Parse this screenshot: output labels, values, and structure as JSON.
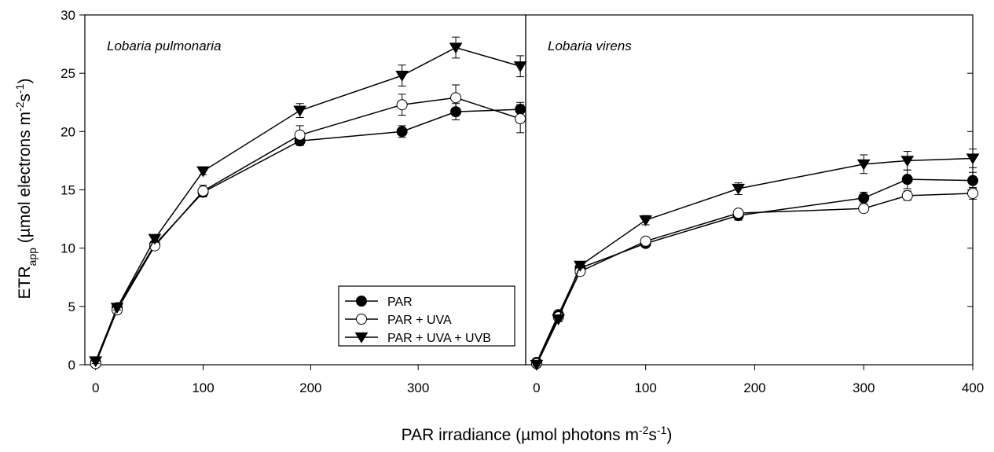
{
  "xlabel": [
    {
      "text": "PAR irradiance (µmol photons m"
    },
    {
      "text": "-2",
      "shift": "super"
    },
    {
      "text": "s"
    },
    {
      "text": "-1",
      "shift": "super"
    },
    {
      "text": ")"
    }
  ],
  "ylabel": [
    {
      "text": "ETR"
    },
    {
      "text": "app",
      "shift": "sub"
    },
    {
      "text": " (µmol electrons m"
    },
    {
      "text": "-2",
      "shift": "super"
    },
    {
      "text": "s"
    },
    {
      "text": "-1",
      "shift": "super"
    },
    {
      "text": ")"
    }
  ],
  "chart_data": [
    {
      "type": "line",
      "annotation": "Lobaria pulmonaria",
      "x": [
        0,
        20,
        55,
        100,
        190,
        285,
        335,
        395
      ],
      "xlim": [
        -10,
        400
      ],
      "xticks": [
        0,
        100,
        200,
        300
      ],
      "ylim": [
        0,
        30
      ],
      "yticks": [
        0,
        5,
        10,
        15,
        20,
        25,
        30
      ],
      "ytick_labels": true,
      "legend": "lower right",
      "series": [
        {
          "name": "PAR",
          "color": "#000000",
          "marker": "circle",
          "fill": "#000000",
          "values": [
            0.2,
            4.9,
            10.3,
            14.8,
            19.2,
            20.0,
            21.7,
            21.9
          ],
          "errors": [
            0.2,
            0.2,
            0.3,
            0.4,
            0.4,
            0.5,
            0.7,
            0.6
          ]
        },
        {
          "name": "PAR + UVA",
          "color": "#000000",
          "marker": "circle",
          "fill": "#ffffff",
          "values": [
            0.1,
            4.7,
            10.2,
            14.9,
            19.7,
            22.3,
            22.9,
            21.1
          ],
          "errors": [
            0.1,
            0.2,
            0.3,
            0.5,
            0.8,
            0.9,
            1.1,
            1.2
          ]
        },
        {
          "name": "PAR + UVA + UVB",
          "color": "#000000",
          "marker": "triangle-down",
          "fill": "#000000",
          "values": [
            0.3,
            4.9,
            10.8,
            16.6,
            21.8,
            24.8,
            27.2,
            25.6
          ],
          "errors": [
            0.2,
            0.2,
            0.3,
            0.3,
            0.6,
            0.9,
            0.9,
            0.9
          ]
        }
      ]
    },
    {
      "type": "line",
      "annotation": "Lobaria virens",
      "x": [
        0,
        20,
        40,
        100,
        185,
        300,
        340,
        400
      ],
      "xlim": [
        -10,
        400
      ],
      "xticks": [
        0,
        100,
        200,
        300,
        400
      ],
      "ylim": [
        0,
        30
      ],
      "yticks": [
        0,
        5,
        10,
        15,
        20,
        25,
        30
      ],
      "ytick_labels": false,
      "series": [
        {
          "color": "#000000",
          "marker": "circle",
          "fill": "#000000",
          "values": [
            0.2,
            4.3,
            8.3,
            10.4,
            12.8,
            14.3,
            15.9,
            15.8
          ],
          "errors": [
            0.1,
            0.2,
            0.2,
            0.3,
            0.4,
            0.5,
            0.8,
            0.7
          ]
        },
        {
          "color": "#000000",
          "marker": "circle",
          "fill": "#ffffff",
          "values": [
            0.1,
            4.1,
            8.0,
            10.6,
            13.0,
            13.4,
            14.5,
            14.7
          ],
          "errors": [
            0.1,
            0.2,
            0.2,
            0.3,
            0.3,
            0.3,
            0.4,
            0.5
          ]
        },
        {
          "color": "#000000",
          "marker": "triangle-down",
          "fill": "#000000",
          "values": [
            0.0,
            3.9,
            8.5,
            12.4,
            15.1,
            17.2,
            17.5,
            17.7
          ],
          "errors": [
            0.1,
            0.2,
            0.2,
            0.4,
            0.5,
            0.8,
            0.8,
            0.8
          ]
        }
      ]
    }
  ]
}
